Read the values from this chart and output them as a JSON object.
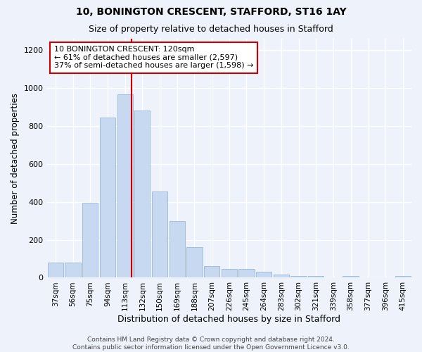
{
  "title1": "10, BONINGTON CRESCENT, STAFFORD, ST16 1AY",
  "title2": "Size of property relative to detached houses in Stafford",
  "xlabel": "Distribution of detached houses by size in Stafford",
  "ylabel": "Number of detached properties",
  "categories": [
    "37sqm",
    "56sqm",
    "75sqm",
    "94sqm",
    "113sqm",
    "132sqm",
    "150sqm",
    "169sqm",
    "188sqm",
    "207sqm",
    "226sqm",
    "245sqm",
    "264sqm",
    "283sqm",
    "302sqm",
    "321sqm",
    "339sqm",
    "358sqm",
    "377sqm",
    "396sqm",
    "415sqm"
  ],
  "values": [
    80,
    80,
    395,
    845,
    965,
    880,
    455,
    300,
    160,
    60,
    45,
    45,
    30,
    15,
    10,
    10,
    0,
    10,
    0,
    0,
    10
  ],
  "bar_color": "#c6d9f0",
  "bar_edge_color": "#9ab8d8",
  "highlight_line_color": "#cc0000",
  "annotation_text": "10 BONINGTON CRESCENT: 120sqm\n← 61% of detached houses are smaller (2,597)\n37% of semi-detached houses are larger (1,598) →",
  "annotation_box_color": "#ffffff",
  "annotation_box_edge_color": "#cc0000",
  "ylim": [
    0,
    1260
  ],
  "yticks": [
    0,
    200,
    400,
    600,
    800,
    1000,
    1200
  ],
  "background_color": "#eef2fa",
  "grid_color": "#ffffff",
  "footnote": "Contains HM Land Registry data © Crown copyright and database right 2024.\nContains public sector information licensed under the Open Government Licence v3.0."
}
